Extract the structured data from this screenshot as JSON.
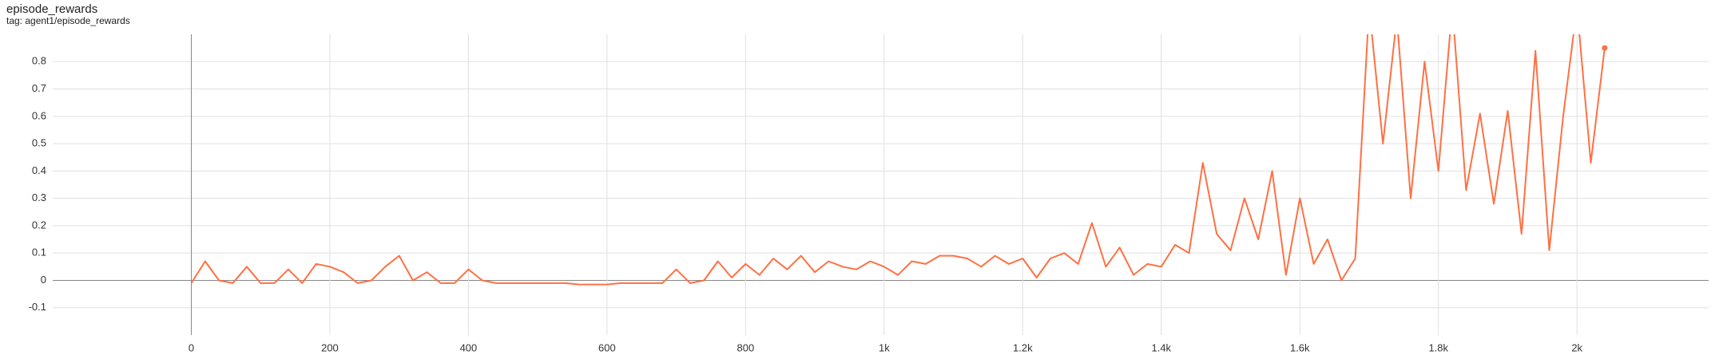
{
  "chart_data": {
    "type": "line",
    "title": "episode_rewards",
    "subtitle": "tag: agent1/episode_rewards",
    "x": [
      0,
      20,
      40,
      60,
      80,
      100,
      120,
      140,
      160,
      180,
      200,
      220,
      240,
      260,
      280,
      300,
      320,
      340,
      360,
      380,
      400,
      420,
      440,
      460,
      480,
      500,
      520,
      540,
      560,
      580,
      600,
      620,
      640,
      660,
      680,
      700,
      720,
      740,
      760,
      780,
      800,
      820,
      840,
      860,
      880,
      900,
      920,
      940,
      960,
      980,
      1000,
      1020,
      1040,
      1060,
      1080,
      1100,
      1120,
      1140,
      1160,
      1180,
      1200,
      1220,
      1240,
      1260,
      1280,
      1300,
      1320,
      1340,
      1360,
      1380,
      1400,
      1420,
      1440,
      1460,
      1480,
      1500,
      1520,
      1540,
      1560,
      1580,
      1600,
      1620,
      1640,
      1660,
      1680,
      1700,
      1720,
      1740,
      1760,
      1780,
      1800,
      1820,
      1840,
      1860,
      1880,
      1900,
      1920,
      1940,
      1960,
      1980,
      2000,
      2020,
      2040
    ],
    "series": [
      {
        "color": "#ff7043",
        "values": [
          -0.01,
          0.07,
          0,
          -0.01,
          0.05,
          -0.01,
          -0.01,
          0.04,
          -0.01,
          0.06,
          0.05,
          0.03,
          -0.01,
          0,
          0.05,
          0.09,
          0,
          0.03,
          -0.01,
          -0.01,
          0.04,
          0,
          -0.01,
          -0.01,
          -0.01,
          -0.01,
          -0.01,
          -0.01,
          -0.015,
          -0.015,
          -0.015,
          -0.01,
          -0.01,
          -0.01,
          -0.01,
          0.04,
          -0.01,
          0,
          0.07,
          0.01,
          0.06,
          0.02,
          0.08,
          0.04,
          0.09,
          0.03,
          0.07,
          0.05,
          0.04,
          0.07,
          0.05,
          0.02,
          0.07,
          0.06,
          0.09,
          0.09,
          0.08,
          0.05,
          0.09,
          0.06,
          0.08,
          0.01,
          0.08,
          0.1,
          0.06,
          0.21,
          0.05,
          0.12,
          0.02,
          0.06,
          0.05,
          0.13,
          0.1,
          0.43,
          0.17,
          0.11,
          0.3,
          0.15,
          0.4,
          0.02,
          0.3,
          0.06,
          0.15,
          0,
          0.08,
          1.0,
          0.5,
          0.96,
          0.3,
          0.8,
          0.4,
          1.0,
          0.33,
          0.61,
          0.28,
          0.62,
          0.17,
          0.84,
          0.11,
          0.6,
          1.0,
          0.43,
          0.85
        ]
      }
    ],
    "xlim": [
      -200,
      2190
    ],
    "ylim": [
      -0.2,
      0.9
    ],
    "xticks": [
      0,
      200,
      400,
      600,
      800,
      {
        "value": 1000,
        "label": "1k"
      },
      {
        "value": 1200,
        "label": "1.2k"
      },
      {
        "value": 1400,
        "label": "1.4k"
      },
      {
        "value": 1600,
        "label": "1.6k"
      },
      {
        "value": 1800,
        "label": "1.8k"
      },
      {
        "value": 2000,
        "label": "2k"
      }
    ],
    "yticks": [
      -0.1,
      0,
      0.1,
      0.2,
      0.3,
      0.4,
      0.5,
      0.6,
      0.7,
      0.8
    ],
    "grid": true
  }
}
